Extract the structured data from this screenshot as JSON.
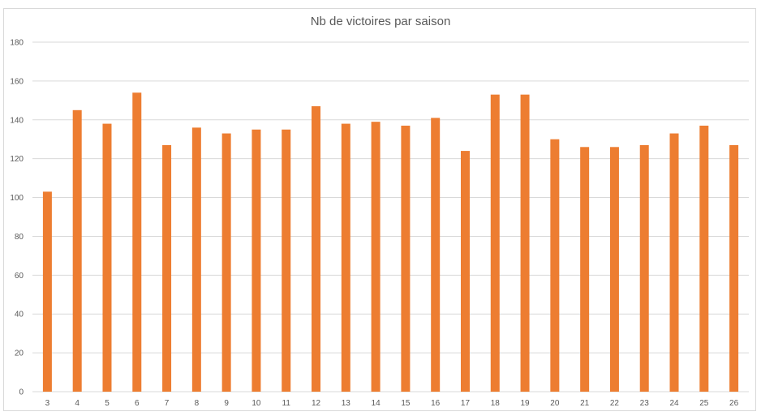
{
  "chart_data": {
    "type": "bar",
    "title": "Nb de victoires par saison",
    "xlabel": "",
    "ylabel": "",
    "categories": [
      "3",
      "4",
      "5",
      "6",
      "7",
      "8",
      "9",
      "10",
      "11",
      "12",
      "13",
      "14",
      "15",
      "16",
      "17",
      "18",
      "19",
      "20",
      "21",
      "22",
      "23",
      "24",
      "25",
      "26"
    ],
    "values": [
      103,
      145,
      138,
      154,
      127,
      136,
      133,
      135,
      135,
      147,
      138,
      139,
      137,
      141,
      124,
      153,
      153,
      130,
      126,
      126,
      127,
      133,
      137,
      127
    ],
    "ylim": [
      0,
      180
    ],
    "yticks": [
      "0",
      "20",
      "40",
      "60",
      "80",
      "100",
      "120",
      "140",
      "160",
      "180"
    ],
    "grid": true,
    "legend": "none",
    "bar_color": "#ED7D31",
    "grid_color": "#D9D9D9",
    "text_color": "#595959"
  }
}
